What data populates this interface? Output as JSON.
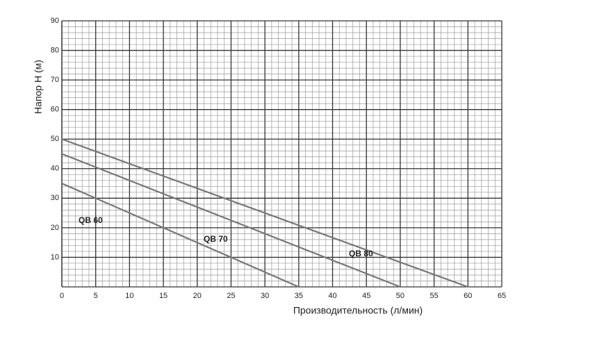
{
  "chart_data": {
    "type": "line",
    "xlabel": "Производительность (л/мин)",
    "ylabel": "Напор H (м)",
    "series": [
      {
        "name": "QB 60",
        "color": "#777777",
        "x": [
          0,
          35
        ],
        "values": [
          35,
          0
        ]
      },
      {
        "name": "QB 70",
        "color": "#777777",
        "x": [
          0,
          50
        ],
        "values": [
          45,
          0
        ]
      },
      {
        "name": "QB 80",
        "color": "#777777",
        "x": [
          0,
          60
        ],
        "values": [
          50,
          0
        ]
      }
    ],
    "xlim": [
      0,
      65
    ],
    "xticks": [
      0,
      5,
      10,
      15,
      20,
      25,
      30,
      35,
      40,
      45,
      50,
      55,
      60,
      65
    ],
    "ylim": [
      0,
      90
    ],
    "yticks": [
      10,
      20,
      30,
      40,
      50,
      60,
      70,
      80,
      90
    ],
    "grid": true,
    "x_minor_step": 1,
    "y_minor_step": 2
  }
}
